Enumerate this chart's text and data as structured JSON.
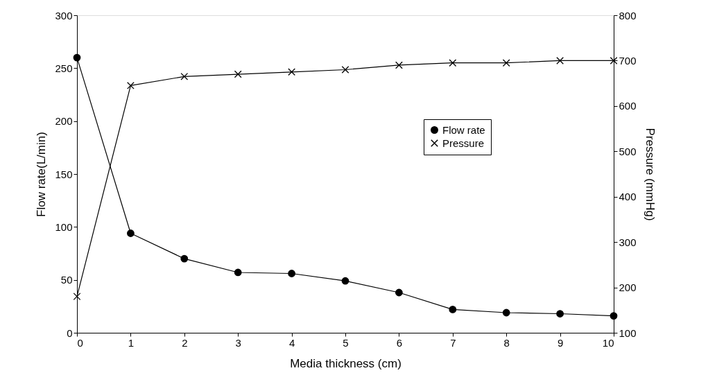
{
  "chart_data": {
    "type": "line",
    "xlabel": "Media thickness (cm)",
    "ylabel": "Flow rate(L/min)",
    "y2label": "Pressure (mmHg)",
    "x": [
      0,
      1,
      2,
      3,
      4,
      5,
      6,
      7,
      8,
      9,
      10
    ],
    "series": [
      {
        "name": "Flow rate",
        "color": "#000000",
        "marker": "circle",
        "values": [
          260,
          94,
          70,
          57,
          56,
          49,
          38,
          22,
          19,
          18,
          16
        ]
      },
      {
        "name": "Pressure",
        "color": "#000000",
        "marker": "cross",
        "axis": "y2",
        "values": [
          180,
          645,
          665,
          670,
          675,
          680,
          690,
          695,
          695,
          700,
          700
        ]
      }
    ],
    "xlim": [
      0,
      10
    ],
    "xticks": [
      0,
      1,
      2,
      3,
      4,
      5,
      6,
      7,
      8,
      9,
      10
    ],
    "ylim": [
      0,
      300
    ],
    "yticks": [
      0,
      50,
      100,
      150,
      200,
      250,
      300
    ],
    "y2lim": [
      100,
      800
    ],
    "y2ticks": [
      100,
      200,
      300,
      400,
      500,
      600,
      700,
      800
    ],
    "legend": "right",
    "grid": false,
    "line_style": "solid"
  }
}
